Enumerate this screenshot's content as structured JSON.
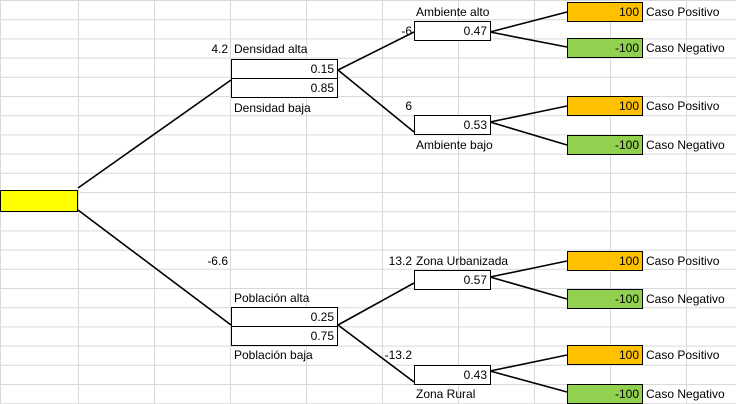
{
  "colors": {
    "root_fill": "#ffff00",
    "positive_fill": "#ffc000",
    "negative_fill": "#92d050",
    "grid": "#d9d9d9",
    "line": "#000000"
  },
  "root": {
    "label": ""
  },
  "branches": [
    {
      "value": "4.2",
      "label_high": "Densidad alta",
      "p_high": "0.15",
      "p_low": "0.85",
      "label_low": "Densidad baja",
      "children": [
        {
          "value": "-6",
          "label": "Ambiente alto",
          "prob": "0.47",
          "pos_value": "100",
          "pos_label": "Caso Positivo",
          "neg_value": "-100",
          "neg_label": "Caso Negativo"
        },
        {
          "value": "6",
          "label": "Ambiente bajo",
          "prob": "0.53",
          "pos_value": "100",
          "pos_label": "Caso Positivo",
          "neg_value": "-100",
          "neg_label": "Caso Negativo"
        }
      ]
    },
    {
      "value": "-6.6",
      "label_high": "Población alta",
      "p_high": "0.25",
      "p_low": "0.75",
      "label_low": "Población baja",
      "children": [
        {
          "value": "13.2",
          "label": "Zona Urbanizada",
          "prob": "0.57",
          "pos_value": "100",
          "pos_label": "Caso Positivo",
          "neg_value": "-100",
          "neg_label": "Caso Negativo"
        },
        {
          "value": "-13.2",
          "label": "Zona Rural",
          "prob": "0.43",
          "pos_value": "100",
          "pos_label": "Caso Positivo",
          "neg_value": "-100",
          "neg_label": "Caso Negativo"
        }
      ]
    }
  ]
}
